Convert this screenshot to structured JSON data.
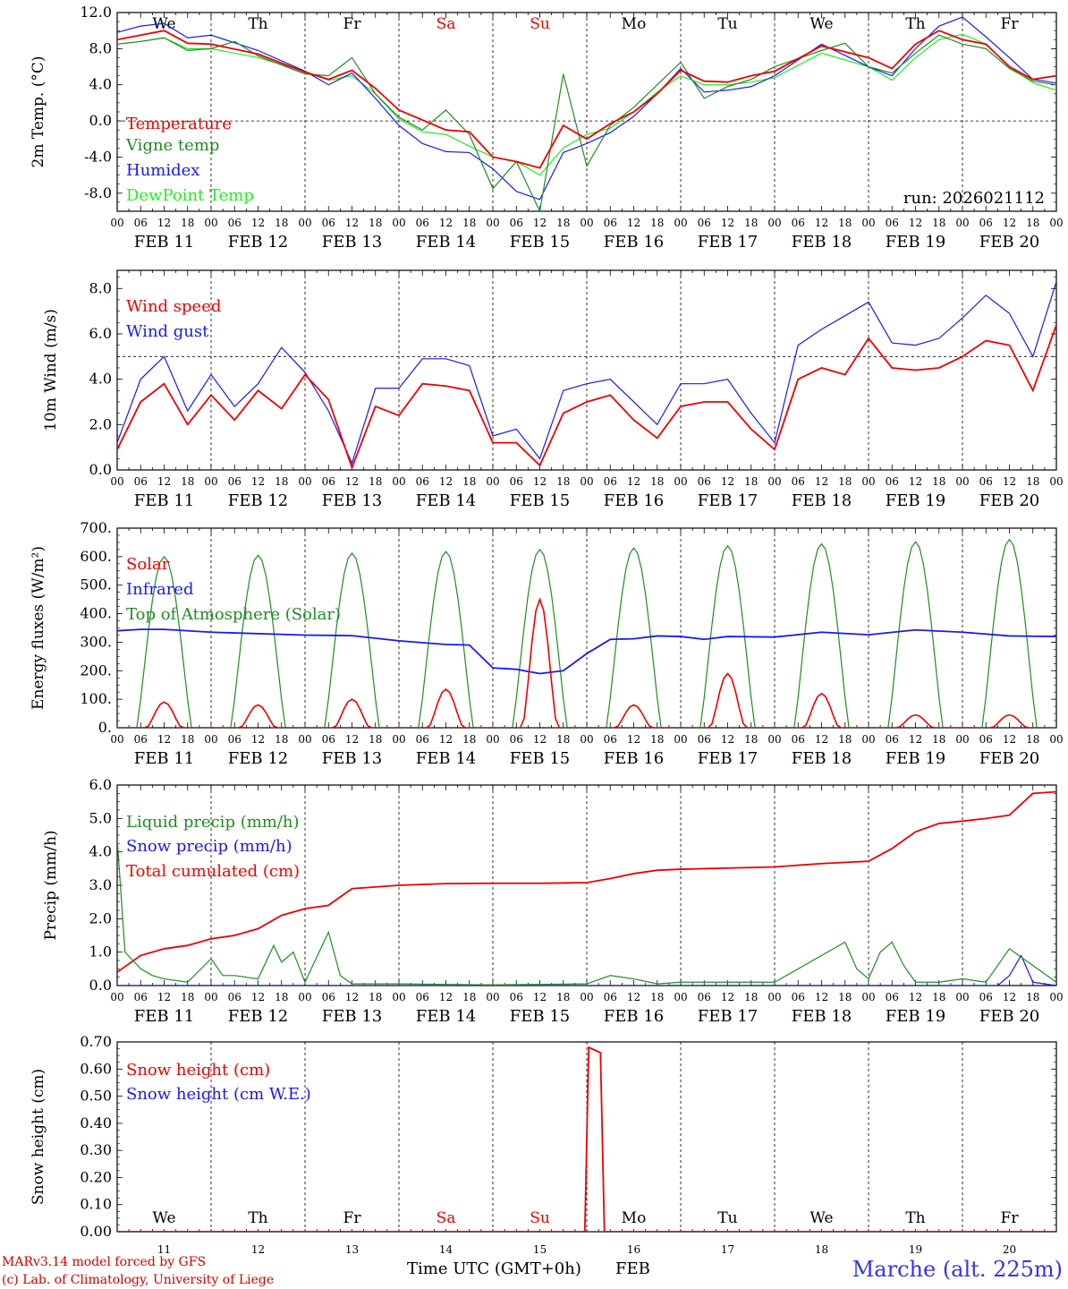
{
  "colors": {
    "red": "#ee0000",
    "green": "#228b22",
    "blue": "#1a1aee",
    "lightgreen": "#22ee22",
    "black": "#000000"
  },
  "weekdays": [
    "We",
    "Th",
    "Fr",
    "Sa",
    "Su",
    "Mo",
    "Tu",
    "We",
    "Th",
    "Fr"
  ],
  "weekday_colors": [
    "#000000",
    "#000000",
    "#000000",
    "#ee0000",
    "#ee0000",
    "#000000",
    "#000000",
    "#000000",
    "#000000",
    "#000000"
  ],
  "dates": [
    "FEB 11",
    "FEB 12",
    "FEB 13",
    "FEB 14",
    "FEB 15",
    "FEB 16",
    "FEB 17",
    "FEB 18",
    "FEB 19",
    "FEB 20"
  ],
  "hour_ticks": [
    "00",
    "06",
    "12",
    "18"
  ],
  "day_numbers": [
    "11",
    "12",
    "13",
    "14",
    "15",
    "16",
    "17",
    "18",
    "19",
    "20"
  ],
  "run_label": "run: 2026021112",
  "credits": {
    "line1": "MARv3.14 model forced by GFS",
    "line2": "(c) Lab. of Climatology, University of Liege"
  },
  "xaxis_title": "Time UTC (GMT+0h)",
  "xaxis_month": "FEB",
  "station": "Marche (alt. 225m)",
  "chart_data": [
    {
      "type": "line",
      "title": "2m Temp.",
      "ylabel": "2m Temp. (°C)",
      "ylim": [
        -10,
        12
      ],
      "yticks": [
        -8,
        -4,
        0,
        4,
        8,
        12
      ],
      "ytick_labels": [
        "-8.0",
        "-4.0",
        "0.0",
        "4.0",
        "8.0",
        "12.0"
      ],
      "hline": 0,
      "x_unit": "hours since FEB 11 00 UTC",
      "x_range": [
        0,
        240
      ],
      "series": [
        {
          "name": "Temperature",
          "color": "#ee0000",
          "x": [
            0,
            6,
            12,
            18,
            24,
            36,
            48,
            54,
            60,
            66,
            72,
            84,
            90,
            96,
            102,
            108,
            114,
            120,
            126,
            132,
            138,
            144,
            150,
            156,
            162,
            168,
            180,
            192,
            198,
            204,
            210,
            216,
            222,
            228,
            234,
            240
          ],
          "y": [
            9,
            9.5,
            10,
            8.6,
            8.5,
            7.4,
            5.4,
            4.6,
            5.6,
            3.6,
            1.2,
            -1,
            -1.2,
            -4,
            -4.5,
            -5.2,
            -0.5,
            -2,
            -0.3,
            1,
            3,
            5.6,
            4.4,
            4.3,
            5,
            5.5,
            8.3,
            7,
            5.8,
            8.5,
            10,
            9,
            8.5,
            6,
            4.6,
            5
          ]
        },
        {
          "name": "Vigne temp",
          "color": "#228b22",
          "x": [
            0,
            6,
            12,
            18,
            24,
            30,
            36,
            48,
            54,
            60,
            66,
            72,
            78,
            84,
            90,
            96,
            102,
            108,
            114,
            120,
            126,
            132,
            138,
            144,
            150,
            156,
            162,
            168,
            180,
            186,
            192,
            198,
            204,
            210,
            216,
            222,
            228,
            234,
            240
          ],
          "y": [
            8.5,
            8.8,
            9.2,
            7.8,
            8,
            8.8,
            7.2,
            5.2,
            5,
            7,
            3,
            0.4,
            -1,
            1.2,
            -1.5,
            -7.5,
            -4.5,
            -10,
            5.2,
            -5,
            -0.5,
            1.5,
            4,
            6.5,
            2.5,
            3.8,
            4.6,
            6,
            7.8,
            8.6,
            6,
            5.3,
            7.5,
            9.5,
            8.5,
            8,
            5.8,
            4.4,
            4
          ]
        },
        {
          "name": "Humidex",
          "color": "#1a1aee",
          "x": [
            0,
            6,
            12,
            18,
            24,
            36,
            48,
            54,
            60,
            66,
            72,
            78,
            84,
            90,
            96,
            102,
            108,
            114,
            120,
            126,
            132,
            138,
            144,
            150,
            156,
            162,
            168,
            180,
            192,
            198,
            204,
            210,
            216,
            222,
            228,
            234,
            240
          ],
          "y": [
            9.8,
            10.5,
            10.8,
            9.2,
            9.5,
            7.8,
            5.5,
            4,
            5.3,
            2.5,
            -0.5,
            -2.5,
            -3.4,
            -3.5,
            -5.3,
            -7.8,
            -8.7,
            -3.5,
            -2.5,
            -1.3,
            0.5,
            3,
            5.8,
            3.2,
            3.4,
            3.8,
            5,
            8.5,
            6,
            5,
            8,
            10.5,
            11.5,
            9.3,
            7,
            4.6,
            4.2
          ]
        },
        {
          "name": "DewPoint Temp",
          "color": "#22ee22",
          "x": [
            0,
            6,
            12,
            18,
            24,
            36,
            48,
            54,
            60,
            66,
            72,
            78,
            84,
            90,
            96,
            102,
            108,
            114,
            120,
            126,
            132,
            138,
            144,
            150,
            156,
            162,
            168,
            180,
            192,
            198,
            204,
            210,
            216,
            222,
            228,
            234,
            240
          ],
          "y": [
            8.5,
            8.8,
            9.2,
            8,
            8,
            7,
            5.5,
            4.5,
            5,
            3,
            0.2,
            -1.2,
            -1.5,
            -2.8,
            -4,
            -4.5,
            -6,
            -3,
            -1.5,
            -0.8,
            1,
            3.2,
            5,
            4,
            4,
            4.3,
            4.8,
            7.5,
            6,
            4.5,
            7,
            9,
            9.6,
            8.5,
            6,
            4.2,
            3.4
          ]
        }
      ]
    },
    {
      "type": "line",
      "title": "10m Wind",
      "ylabel": "10m Wind (m/s)",
      "ylim": [
        0,
        8.8
      ],
      "yticks": [
        0,
        2,
        4,
        6,
        8
      ],
      "ytick_labels": [
        "0.0",
        "2.0",
        "4.0",
        "6.0",
        "8.0"
      ],
      "hline": 5,
      "x_unit": "hours since FEB 11 00 UTC",
      "x_range": [
        0,
        240
      ],
      "series": [
        {
          "name": "Wind speed",
          "color": "#ee0000",
          "x": [
            0,
            6,
            12,
            18,
            24,
            30,
            36,
            42,
            48,
            54,
            60,
            66,
            72,
            78,
            84,
            90,
            96,
            102,
            108,
            114,
            120,
            126,
            132,
            138,
            144,
            150,
            156,
            162,
            168,
            174,
            180,
            186,
            192,
            198,
            204,
            210,
            216,
            222,
            228,
            234,
            240
          ],
          "y": [
            0.9,
            3,
            3.8,
            2,
            3.3,
            2.2,
            3.5,
            2.7,
            4.2,
            3.1,
            0.1,
            2.8,
            2.4,
            3.8,
            3.7,
            3.5,
            1.2,
            1.2,
            0.2,
            2.5,
            3,
            3.3,
            2.2,
            1.4,
            2.8,
            3,
            3,
            1.8,
            0.9,
            4,
            4.5,
            4.2,
            5.8,
            4.5,
            4.4,
            4.5,
            5,
            5.7,
            5.5,
            3.5,
            6.4
          ]
        },
        {
          "name": "Wind gust",
          "color": "#1a1aee",
          "x": [
            0,
            6,
            12,
            18,
            24,
            30,
            36,
            42,
            48,
            54,
            60,
            66,
            72,
            78,
            84,
            90,
            96,
            102,
            108,
            114,
            120,
            126,
            132,
            138,
            144,
            150,
            156,
            162,
            168,
            174,
            180,
            186,
            192,
            198,
            204,
            210,
            216,
            222,
            228,
            234,
            240
          ],
          "y": [
            1.2,
            4,
            5,
            2.6,
            4.2,
            2.8,
            3.8,
            5.4,
            4.3,
            2.6,
            0.3,
            3.6,
            3.6,
            4.9,
            4.9,
            4.6,
            1.5,
            1.8,
            0.5,
            3.5,
            3.8,
            4,
            3,
            2,
            3.8,
            3.8,
            4,
            2.5,
            1.2,
            5.5,
            6.2,
            6.8,
            7.4,
            5.6,
            5.5,
            5.8,
            6.7,
            7.7,
            6.9,
            5,
            8.3
          ]
        }
      ]
    },
    {
      "type": "line",
      "title": "Energy fluxes",
      "ylabel": "Energy fluxes (W/m²)",
      "ylim": [
        0,
        700
      ],
      "yticks": [
        0,
        100,
        200,
        300,
        400,
        500,
        600,
        700
      ],
      "ytick_labels": [
        "0.",
        "100.",
        "200.",
        "300.",
        "400.",
        "500.",
        "600.",
        "700."
      ],
      "x_unit": "hours since FEB 11 00 UTC",
      "x_range": [
        0,
        240
      ],
      "solar_peaks": [
        90,
        80,
        100,
        135,
        450,
        80,
        190,
        120,
        45,
        45
      ],
      "toa_peaks": [
        600,
        605,
        612,
        618,
        625,
        630,
        638,
        645,
        652,
        660
      ],
      "series": [
        {
          "name": "Solar",
          "color": "#ee0000"
        },
        {
          "name": "Infrared",
          "color": "#1a1aee",
          "x": [
            0,
            6,
            12,
            24,
            48,
            60,
            72,
            84,
            90,
            96,
            102,
            108,
            114,
            120,
            126,
            132,
            138,
            144,
            150,
            156,
            168,
            180,
            192,
            204,
            216,
            228,
            240
          ],
          "y": [
            340,
            345,
            345,
            335,
            325,
            323,
            305,
            292,
            290,
            210,
            205,
            190,
            200,
            260,
            310,
            312,
            322,
            320,
            310,
            320,
            318,
            335,
            326,
            343,
            335,
            322,
            320
          ]
        },
        {
          "name": "Top of Atmosphere (Solar)",
          "color": "#228b22"
        }
      ]
    },
    {
      "type": "line",
      "title": "Precip",
      "ylabel": "Precip (mm/h)",
      "ylim": [
        0,
        6
      ],
      "yticks": [
        0,
        1,
        2,
        3,
        4,
        5,
        6
      ],
      "ytick_labels": [
        "0.0",
        "1.0",
        "2.0",
        "3.0",
        "4.0",
        "5.0",
        "6.0"
      ],
      "x_unit": "hours since FEB 11 00 UTC",
      "x_range": [
        0,
        240
      ],
      "series": [
        {
          "name": "Liquid precip (mm/h)",
          "color": "#228b22",
          "x": [
            0,
            2,
            6,
            9,
            12,
            18,
            24,
            27,
            30,
            36,
            40,
            42,
            45,
            48,
            54,
            57,
            60,
            66,
            72,
            96,
            120,
            126,
            132,
            138,
            144,
            168,
            186,
            189,
            192,
            195,
            198,
            201,
            204,
            210,
            216,
            222,
            228,
            234,
            240
          ],
          "y": [
            4.4,
            1,
            0.5,
            0.3,
            0.2,
            0.1,
            0.8,
            0.3,
            0.3,
            0.2,
            1.2,
            0.7,
            1,
            0.1,
            1.6,
            0.3,
            0.05,
            0.05,
            0.05,
            0.02,
            0.05,
            0.3,
            0.2,
            0.05,
            0.1,
            0.1,
            1.3,
            0.5,
            0.2,
            1,
            1.3,
            0.6,
            0.1,
            0.1,
            0.2,
            0.1,
            1.1,
            0.6,
            0.1
          ]
        },
        {
          "name": "Snow precip (mm/h)",
          "color": "#1a1aee",
          "x": [
            0,
            120,
            225,
            228,
            231,
            234,
            240
          ],
          "y": [
            0,
            0,
            0,
            0.3,
            0.9,
            0.1,
            0
          ]
        },
        {
          "name": "Total cumulated (cm)",
          "color": "#ee0000",
          "x": [
            0,
            6,
            12,
            18,
            24,
            30,
            36,
            42,
            48,
            54,
            60,
            72,
            84,
            96,
            108,
            120,
            126,
            132,
            138,
            144,
            168,
            180,
            192,
            198,
            204,
            210,
            216,
            222,
            228,
            234,
            240
          ],
          "y": [
            0.4,
            0.9,
            1.1,
            1.2,
            1.4,
            1.5,
            1.7,
            2.1,
            2.3,
            2.4,
            2.9,
            3,
            3.05,
            3.06,
            3.06,
            3.08,
            3.2,
            3.35,
            3.45,
            3.48,
            3.55,
            3.65,
            3.72,
            4.1,
            4.6,
            4.85,
            4.92,
            5,
            5.1,
            5.75,
            5.8
          ]
        }
      ]
    },
    {
      "type": "line",
      "title": "Snow height",
      "ylabel": "Snow height (cm)",
      "ylim": [
        0,
        0.7
      ],
      "yticks": [
        0,
        0.1,
        0.2,
        0.3,
        0.4,
        0.5,
        0.6,
        0.7
      ],
      "ytick_labels": [
        "0.00",
        "0.10",
        "0.20",
        "0.30",
        "0.40",
        "0.50",
        "0.60",
        "0.70"
      ],
      "x_unit": "hours since FEB 11 00 UTC",
      "x_range": [
        0,
        240
      ],
      "series": [
        {
          "name": "Snow height (cm)",
          "color": "#ee0000",
          "x": [
            0,
            119.5,
            120.5,
            123.5,
            124.5,
            240
          ],
          "y": [
            0,
            0,
            0.68,
            0.66,
            0,
            0
          ]
        },
        {
          "name": "Snow height (cm W.E.)",
          "color": "#1a1aee",
          "x": [
            0,
            240
          ],
          "y": [
            0,
            0
          ]
        }
      ]
    }
  ]
}
